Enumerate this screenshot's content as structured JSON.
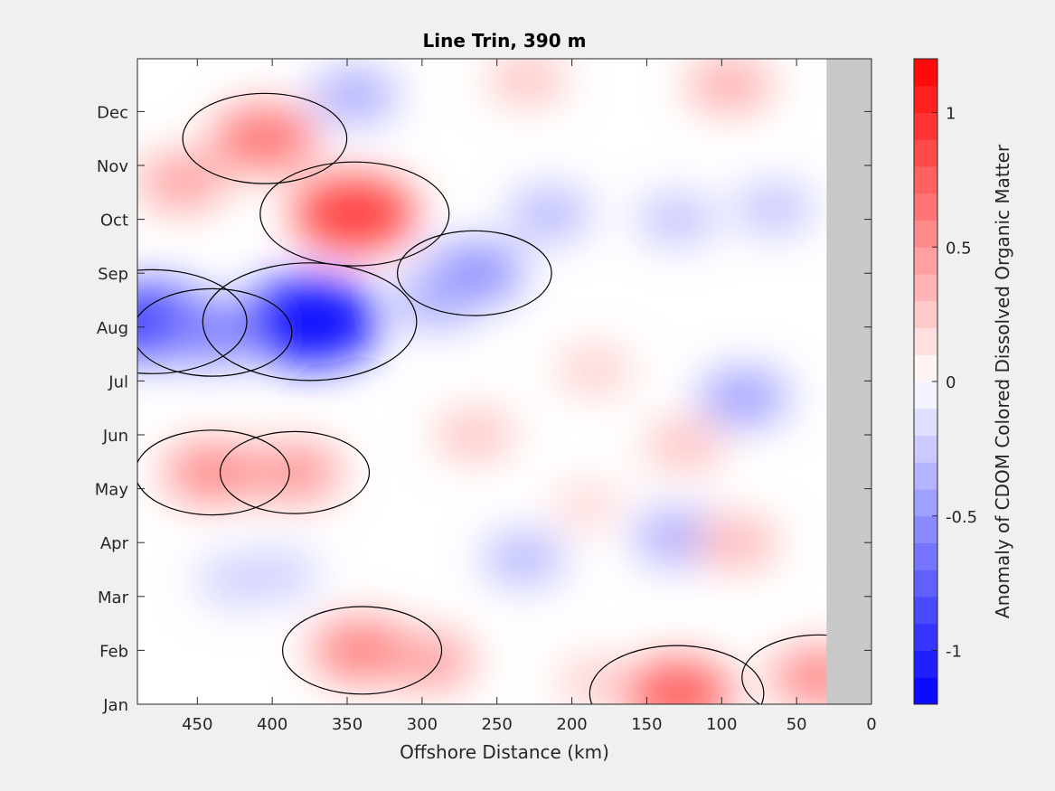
{
  "chart_data": {
    "type": "heatmap",
    "subtype": "filled-contour",
    "title": "Line Trin, 390 m",
    "xlabel": "Offshore Distance (km)",
    "ylabel": "",
    "x_reversed": true,
    "xlim": [
      0,
      490
    ],
    "xticks": [
      450,
      400,
      350,
      300,
      250,
      200,
      150,
      100,
      50,
      0
    ],
    "y_categories": [
      "Jan",
      "Feb",
      "Mar",
      "Apr",
      "May",
      "Jun",
      "Jul",
      "Aug",
      "Sep",
      "Oct",
      "Nov",
      "Dec"
    ],
    "no_data_region": {
      "x_from_km": 0,
      "x_to_km": 30,
      "color": "#c8c8c8"
    },
    "colorbar": {
      "label": "Anomaly of CDOM Colored Dissolved Organic Matter",
      "range": [
        -1.2,
        1.2
      ],
      "ticks": [
        -1,
        -0.5,
        0,
        0.5,
        1
      ],
      "tick_labels": [
        "-1",
        "-0.5",
        "0",
        "0.5",
        "1"
      ],
      "levels": 24,
      "negative_color": "#0000ff",
      "positive_color": "#ff0000",
      "neutral_color": "#ffffff"
    },
    "grid": false,
    "zero_contour_color": "#000000",
    "features": [
      {
        "x_km": 375,
        "month": 8.1,
        "value": -1.15
      },
      {
        "x_km": 480,
        "month": 8.1,
        "value": -0.9
      },
      {
        "x_km": 440,
        "month": 7.9,
        "value": -0.6
      },
      {
        "x_km": 265,
        "month": 9.0,
        "value": -0.55
      },
      {
        "x_km": 215,
        "month": 10.1,
        "value": -0.35
      },
      {
        "x_km": 290,
        "month": 8.5,
        "value": -0.4
      },
      {
        "x_km": 345,
        "month": 12.3,
        "value": -0.4
      },
      {
        "x_km": 85,
        "month": 6.7,
        "value": -0.45
      },
      {
        "x_km": 65,
        "month": 10.2,
        "value": -0.3
      },
      {
        "x_km": 130,
        "month": 10.0,
        "value": -0.3
      },
      {
        "x_km": 130,
        "month": 4.1,
        "value": -0.4
      },
      {
        "x_km": 232,
        "month": 3.7,
        "value": -0.35
      },
      {
        "x_km": 395,
        "month": 3.4,
        "value": -0.25
      },
      {
        "x_km": 425,
        "month": 3.3,
        "value": -0.25
      },
      {
        "x_km": 345,
        "month": 10.1,
        "value": 0.9
      },
      {
        "x_km": 405,
        "month": 11.5,
        "value": 0.65
      },
      {
        "x_km": 460,
        "month": 10.7,
        "value": 0.45
      },
      {
        "x_km": 440,
        "month": 5.3,
        "value": 0.55
      },
      {
        "x_km": 385,
        "month": 5.3,
        "value": 0.5
      },
      {
        "x_km": 265,
        "month": 6.0,
        "value": 0.3
      },
      {
        "x_km": 185,
        "month": 7.2,
        "value": 0.25
      },
      {
        "x_km": 130,
        "month": 1.2,
        "value": 0.75
      },
      {
        "x_km": 340,
        "month": 2.0,
        "value": 0.6
      },
      {
        "x_km": 295,
        "month": 1.8,
        "value": 0.45
      },
      {
        "x_km": 35,
        "month": 1.5,
        "value": 0.55
      },
      {
        "x_km": 125,
        "month": 5.8,
        "value": 0.3
      },
      {
        "x_km": 90,
        "month": 4.0,
        "value": 0.35
      },
      {
        "x_km": 230,
        "month": 12.6,
        "value": 0.3
      },
      {
        "x_km": 95,
        "month": 12.5,
        "value": 0.4
      },
      {
        "x_km": 185,
        "month": 1.4,
        "value": 0.25
      },
      {
        "x_km": 190,
        "month": 4.7,
        "value": 0.2
      }
    ]
  }
}
